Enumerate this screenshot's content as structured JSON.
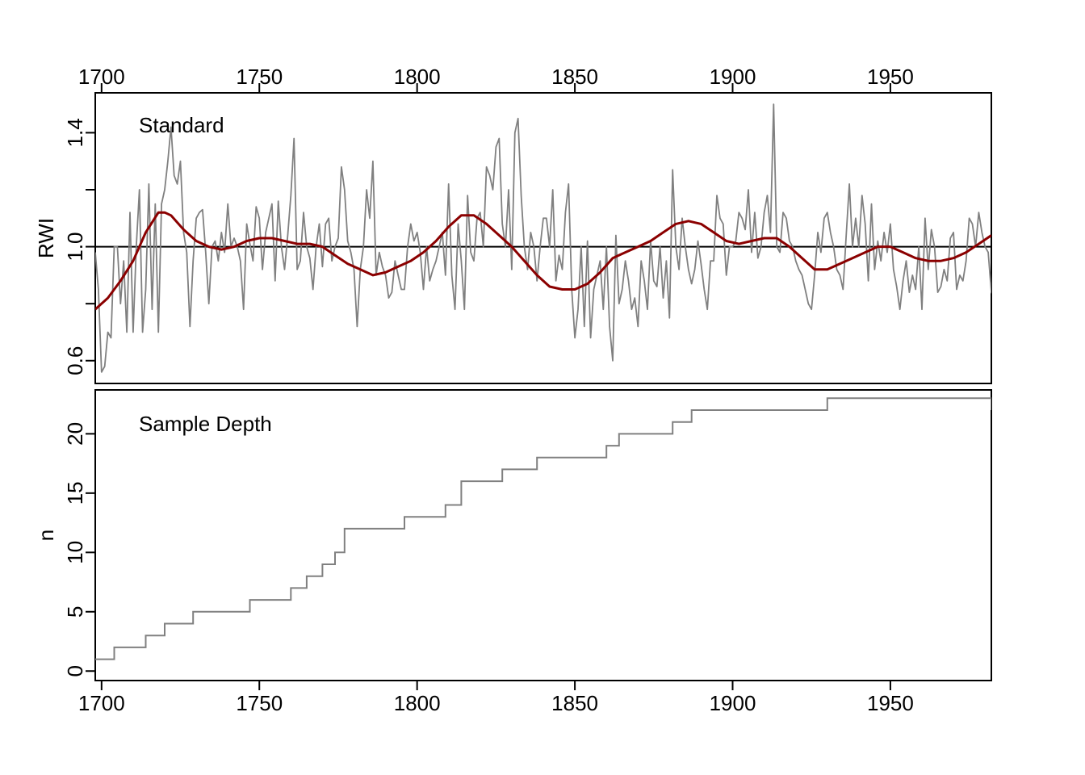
{
  "chart_data": [
    {
      "type": "line",
      "panel_label": "Standard",
      "ylabel": "RWI",
      "xlim": [
        1698,
        1982
      ],
      "ylim": [
        0.52,
        1.54
      ],
      "x_ticks": [
        "1700",
        "1750",
        "1800",
        "1850",
        "1900",
        "1950"
      ],
      "x_tick_values": [
        1700,
        1750,
        1800,
        1850,
        1900,
        1950
      ],
      "y_ticks": [
        "0.6",
        "1.0",
        "1.4"
      ],
      "y_tick_values": [
        0.6,
        1.0,
        1.4
      ],
      "minor_y_tick_values": [
        0.8,
        1.2
      ],
      "reference_line": 1.0,
      "grid": false,
      "series": [
        {
          "color": "#808080",
          "x_start": 1698,
          "values": [
            0.98,
            0.85,
            0.56,
            0.58,
            0.7,
            0.68,
            1.0,
            1.0,
            0.8,
            0.95,
            0.7,
            1.12,
            0.7,
            1.0,
            1.2,
            0.7,
            0.85,
            1.22,
            0.78,
            1.15,
            0.7,
            1.15,
            1.2,
            1.3,
            1.42,
            1.25,
            1.22,
            1.3,
            1.05,
            0.98,
            0.72,
            0.95,
            1.1,
            1.12,
            1.13,
            0.98,
            0.8,
            1.0,
            1.02,
            0.95,
            1.05,
            0.98,
            1.15,
            1.0,
            1.03,
            1.0,
            0.95,
            0.78,
            1.08,
            1.01,
            0.95,
            1.14,
            1.1,
            0.92,
            1.05,
            1.1,
            1.15,
            0.88,
            1.16,
            1.0,
            0.92,
            1.04,
            1.18,
            1.38,
            0.92,
            0.95,
            1.12,
            1.0,
            0.96,
            0.85,
            1.0,
            1.08,
            0.93,
            1.08,
            1.1,
            0.95,
            1.0,
            1.03,
            1.28,
            1.2,
            1.02,
            0.98,
            0.92,
            0.72,
            0.92,
            1.0,
            1.2,
            1.1,
            1.3,
            0.9,
            0.98,
            0.93,
            0.9,
            0.82,
            0.84,
            0.95,
            0.9,
            0.85,
            0.85,
            1.0,
            1.08,
            1.02,
            1.05,
            0.98,
            0.85,
            1.0,
            0.88,
            0.92,
            0.95,
            1.0,
            1.05,
            0.9,
            1.22,
            0.9,
            0.78,
            1.08,
            0.95,
            0.78,
            1.18,
            0.98,
            0.95,
            1.1,
            1.12,
            1.0,
            1.28,
            1.25,
            1.2,
            1.35,
            1.38,
            1.08,
            1.0,
            1.2,
            0.92,
            1.4,
            1.45,
            1.18,
            1.0,
            0.92,
            1.05,
            1.0,
            0.88,
            1.0,
            1.1,
            1.1,
            1.0,
            1.2,
            0.88,
            0.97,
            0.92,
            1.12,
            1.22,
            0.85,
            0.68,
            0.78,
            1.0,
            0.72,
            1.02,
            0.68,
            0.85,
            0.9,
            0.95,
            0.78,
            1.0,
            0.72,
            0.6,
            1.04,
            0.8,
            0.85,
            0.95,
            0.88,
            0.78,
            0.82,
            0.72,
            0.95,
            0.88,
            0.78,
            1.02,
            0.88,
            0.86,
            1.0,
            0.82,
            0.95,
            0.75,
            1.27,
            1.0,
            0.92,
            1.1,
            1.0,
            0.92,
            0.87,
            0.92,
            1.02,
            0.94,
            0.85,
            0.78,
            0.95,
            0.95,
            1.18,
            1.1,
            1.08,
            0.9,
            1.0,
            1.0,
            1.02,
            1.12,
            1.1,
            1.06,
            1.2,
            0.98,
            1.12,
            0.96,
            1.0,
            1.12,
            1.18,
            1.05,
            1.5,
            1.0,
            0.98,
            1.12,
            1.1,
            1.02,
            1.0,
            0.95,
            0.92,
            0.9,
            0.85,
            0.8,
            0.78,
            0.9,
            1.05,
            0.98,
            1.1,
            1.12,
            1.05,
            1.0,
            0.92,
            0.9,
            0.85,
            1.04,
            1.22,
            1.0,
            1.1,
            1.0,
            1.18,
            1.08,
            0.88,
            1.15,
            0.92,
            1.02,
            0.95,
            1.05,
            0.98,
            1.08,
            0.92,
            0.86,
            0.78,
            0.88,
            0.95,
            0.84,
            0.9,
            0.85,
            1.0,
            0.78,
            1.1,
            0.92,
            1.06,
            1.0,
            0.84,
            0.86,
            0.92,
            0.88,
            1.03,
            1.05,
            0.85,
            0.9,
            0.88,
            0.95,
            1.1,
            1.08,
            1.0,
            1.12,
            1.05,
            1.0,
            0.98,
            0.84,
            0.82,
            0.88,
            0.95,
            1.05,
            1.0,
            0.88,
            0.92,
            0.82,
            0.9,
            1.06,
            1.08,
            1.0,
            0.98,
            0.92,
            0.92,
            0.95,
            1.02,
            1.04,
            0.9,
            0.86,
            0.88,
            1.0,
            0.95,
            1.1,
            1.12,
            1.05,
            1.1,
            1.0,
            0.85,
            1.1,
            0.82,
            0.92,
            1.24,
            1.04,
            0.88,
            1.1,
            1.02,
            1.0,
            1.24,
            0.9,
            1.0
          ]
        },
        {
          "color": "#8b0000",
          "x": [
            1698,
            1702,
            1706,
            1710,
            1714,
            1718,
            1720,
            1722,
            1726,
            1730,
            1734,
            1738,
            1742,
            1746,
            1750,
            1754,
            1758,
            1762,
            1766,
            1770,
            1774,
            1778,
            1782,
            1786,
            1790,
            1794,
            1798,
            1802,
            1806,
            1810,
            1814,
            1818,
            1822,
            1826,
            1830,
            1834,
            1838,
            1842,
            1846,
            1850,
            1854,
            1858,
            1862,
            1866,
            1870,
            1874,
            1878,
            1882,
            1886,
            1890,
            1894,
            1898,
            1902,
            1906,
            1910,
            1914,
            1918,
            1922,
            1926,
            1930,
            1934,
            1938,
            1942,
            1946,
            1950,
            1954,
            1958,
            1962,
            1966,
            1970,
            1974,
            1978,
            1982
          ],
          "values": [
            0.78,
            0.82,
            0.88,
            0.95,
            1.05,
            1.12,
            1.12,
            1.11,
            1.06,
            1.02,
            1.0,
            0.99,
            1.0,
            1.02,
            1.03,
            1.03,
            1.02,
            1.01,
            1.01,
            1.0,
            0.97,
            0.94,
            0.92,
            0.9,
            0.91,
            0.93,
            0.95,
            0.98,
            1.02,
            1.07,
            1.11,
            1.11,
            1.08,
            1.04,
            1.0,
            0.95,
            0.9,
            0.86,
            0.85,
            0.85,
            0.87,
            0.91,
            0.96,
            0.98,
            1.0,
            1.02,
            1.05,
            1.08,
            1.09,
            1.08,
            1.05,
            1.02,
            1.01,
            1.02,
            1.03,
            1.03,
            1.0,
            0.96,
            0.92,
            0.92,
            0.94,
            0.96,
            0.98,
            1.0,
            1.0,
            0.98,
            0.96,
            0.95,
            0.95,
            0.96,
            0.98,
            1.01,
            1.04
          ]
        }
      ]
    },
    {
      "type": "line",
      "panel_label": "Sample Depth",
      "ylabel": "n",
      "xlim": [
        1698,
        1982
      ],
      "ylim": [
        -0.8,
        23.7
      ],
      "x_ticks": [
        "1700",
        "1750",
        "1800",
        "1850",
        "1900",
        "1950"
      ],
      "x_tick_values": [
        1700,
        1750,
        1800,
        1850,
        1900,
        1950
      ],
      "y_ticks": [
        "0",
        "5",
        "10",
        "15",
        "20"
      ],
      "y_tick_values": [
        0,
        5,
        10,
        15,
        20
      ],
      "grid": false,
      "series": [
        {
          "color": "#808080",
          "step": true,
          "x": [
            1698,
            1701,
            1704,
            1707,
            1714,
            1720,
            1729,
            1747,
            1760,
            1763,
            1765,
            1770,
            1772,
            1774,
            1777,
            1796,
            1809,
            1814,
            1824,
            1827,
            1838,
            1860,
            1862,
            1864,
            1881,
            1887,
            1930,
            1982
          ],
          "values": [
            1,
            1,
            2,
            2,
            3,
            4,
            5,
            6,
            7,
            7,
            8,
            9,
            9,
            10,
            12,
            13,
            14,
            16,
            16,
            17,
            18,
            19,
            19,
            20,
            21,
            22,
            23,
            22
          ]
        }
      ]
    }
  ]
}
